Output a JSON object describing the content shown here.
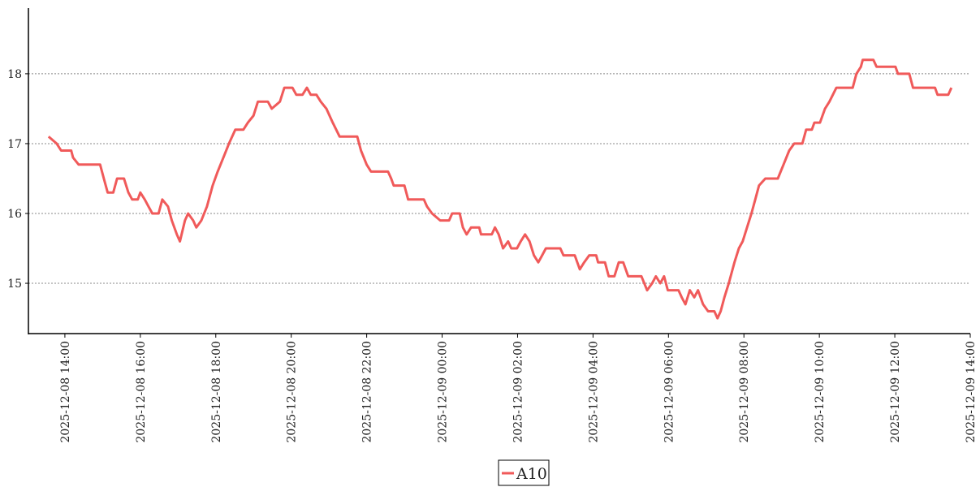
{
  "chart_data": {
    "type": "line",
    "series": [
      {
        "name": "A10",
        "color": "#f05a5a",
        "x": [
          "2025-12-08T13:34",
          "2025-12-08T13:47",
          "2025-12-08T13:54",
          "2025-12-08T14:10",
          "2025-12-08T14:13",
          "2025-12-08T14:22",
          "2025-12-08T14:56",
          "2025-12-08T15:02",
          "2025-12-08T15:08",
          "2025-12-08T15:17",
          "2025-12-08T15:23",
          "2025-12-08T15:34",
          "2025-12-08T15:41",
          "2025-12-08T15:47",
          "2025-12-08T15:56",
          "2025-12-08T16:00",
          "2025-12-08T16:07",
          "2025-12-08T16:13",
          "2025-12-08T16:19",
          "2025-12-08T16:29",
          "2025-12-08T16:35",
          "2025-12-08T16:44",
          "2025-12-08T16:50",
          "2025-12-08T16:58",
          "2025-12-08T17:03",
          "2025-12-08T17:11",
          "2025-12-08T17:16",
          "2025-12-08T17:24",
          "2025-12-08T17:29",
          "2025-12-08T17:37",
          "2025-12-08T17:46",
          "2025-12-08T17:55",
          "2025-12-08T18:03",
          "2025-12-08T18:12",
          "2025-12-08T18:21",
          "2025-12-08T18:31",
          "2025-12-08T18:44",
          "2025-12-08T18:51",
          "2025-12-08T19:00",
          "2025-12-08T19:07",
          "2025-12-08T19:23",
          "2025-12-08T19:29",
          "2025-12-08T19:42",
          "2025-12-08T19:49",
          "2025-12-08T20:02",
          "2025-12-08T20:08",
          "2025-12-08T20:18",
          "2025-12-08T20:25",
          "2025-12-08T20:31",
          "2025-12-08T20:40",
          "2025-12-08T20:47",
          "2025-12-08T20:56",
          "2025-12-08T21:06",
          "2025-12-08T21:17",
          "2025-12-08T21:45",
          "2025-12-08T21:51",
          "2025-12-08T22:00",
          "2025-12-08T22:07",
          "2025-12-08T22:34",
          "2025-12-08T22:39",
          "2025-12-08T22:43",
          "2025-12-08T23:00",
          "2025-12-08T23:06",
          "2025-12-08T23:31",
          "2025-12-08T23:36",
          "2025-12-08T23:44",
          "2025-12-08T23:57",
          "2025-12-09T00:11",
          "2025-12-09T00:16",
          "2025-12-09T00:28",
          "2025-12-09T00:33",
          "2025-12-09T00:39",
          "2025-12-09T00:46",
          "2025-12-09T00:59",
          "2025-12-09T01:02",
          "2025-12-09T01:19",
          "2025-12-09T01:24",
          "2025-12-09T01:30",
          "2025-12-09T01:37",
          "2025-12-09T01:45",
          "2025-12-09T01:50",
          "2025-12-09T01:59",
          "2025-12-09T02:05",
          "2025-12-09T02:12",
          "2025-12-09T02:19",
          "2025-12-09T02:26",
          "2025-12-09T02:33",
          "2025-12-09T02:39",
          "2025-12-09T02:45",
          "2025-12-09T03:08",
          "2025-12-09T03:13",
          "2025-12-09T03:31",
          "2025-12-09T03:39",
          "2025-12-09T03:46",
          "2025-12-09T03:54",
          "2025-12-09T04:05",
          "2025-12-09T04:08",
          "2025-12-09T04:19",
          "2025-12-09T04:25",
          "2025-12-09T04:34",
          "2025-12-09T04:41",
          "2025-12-09T04:48",
          "2025-12-09T04:56",
          "2025-12-09T05:17",
          "2025-12-09T05:26",
          "2025-12-09T05:34",
          "2025-12-09T05:40",
          "2025-12-09T05:47",
          "2025-12-09T05:53",
          "2025-12-09T05:59",
          "2025-12-09T06:16",
          "2025-12-09T06:21",
          "2025-12-09T06:27",
          "2025-12-09T06:34",
          "2025-12-09T06:41",
          "2025-12-09T06:47",
          "2025-12-09T06:55",
          "2025-12-09T07:03",
          "2025-12-09T07:13",
          "2025-12-09T07:18",
          "2025-12-09T07:23",
          "2025-12-09T07:29",
          "2025-12-09T07:36",
          "2025-12-09T07:45",
          "2025-12-09T07:52",
          "2025-12-09T07:58",
          "2025-12-09T08:05",
          "2025-12-09T08:12",
          "2025-12-09T08:18",
          "2025-12-09T08:24",
          "2025-12-09T08:34",
          "2025-12-09T08:54",
          "2025-12-09T09:03",
          "2025-12-09T09:12",
          "2025-12-09T09:20",
          "2025-12-09T09:33",
          "2025-12-09T09:39",
          "2025-12-09T09:48",
          "2025-12-09T09:52",
          "2025-12-09T10:01",
          "2025-12-09T10:09",
          "2025-12-09T10:16",
          "2025-12-09T10:27",
          "2025-12-09T10:53",
          "2025-12-09T10:59",
          "2025-12-09T11:06",
          "2025-12-09T11:09",
          "2025-12-09T11:26",
          "2025-12-09T11:31",
          "2025-12-09T12:01",
          "2025-12-09T12:05",
          "2025-12-09T12:23",
          "2025-12-09T12:29",
          "2025-12-09T13:04",
          "2025-12-09T13:08",
          "2025-12-09T13:25",
          "2025-12-09T13:30"
        ],
        "values": [
          17.1,
          17.0,
          16.9,
          16.9,
          16.8,
          16.7,
          16.7,
          16.5,
          16.3,
          16.3,
          16.5,
          16.5,
          16.3,
          16.2,
          16.2,
          16.3,
          16.2,
          16.1,
          16.0,
          16.0,
          16.2,
          16.1,
          15.9,
          15.7,
          15.6,
          15.9,
          16.0,
          15.9,
          15.8,
          15.9,
          16.1,
          16.4,
          16.6,
          16.8,
          17.0,
          17.2,
          17.2,
          17.3,
          17.4,
          17.6,
          17.6,
          17.5,
          17.6,
          17.8,
          17.8,
          17.7,
          17.7,
          17.8,
          17.7,
          17.7,
          17.6,
          17.5,
          17.3,
          17.1,
          17.1,
          16.9,
          16.7,
          16.6,
          16.6,
          16.5,
          16.4,
          16.4,
          16.2,
          16.2,
          16.1,
          16.0,
          15.9,
          15.9,
          16.0,
          16.0,
          15.8,
          15.7,
          15.8,
          15.8,
          15.7,
          15.7,
          15.8,
          15.7,
          15.5,
          15.6,
          15.5,
          15.5,
          15.6,
          15.7,
          15.6,
          15.4,
          15.3,
          15.4,
          15.5,
          15.5,
          15.4,
          15.4,
          15.2,
          15.3,
          15.4,
          15.4,
          15.3,
          15.3,
          15.1,
          15.1,
          15.3,
          15.3,
          15.1,
          15.1,
          14.9,
          15.0,
          15.1,
          15.0,
          15.1,
          14.9,
          14.9,
          14.8,
          14.7,
          14.9,
          14.8,
          14.9,
          14.7,
          14.6,
          14.6,
          14.5,
          14.6,
          14.8,
          15.0,
          15.3,
          15.5,
          15.6,
          15.8,
          16.0,
          16.2,
          16.4,
          16.5,
          16.5,
          16.7,
          16.9,
          17.0,
          17.0,
          17.2,
          17.2,
          17.3,
          17.3,
          17.5,
          17.6,
          17.8,
          17.8,
          18.0,
          18.1,
          18.2,
          18.2,
          18.1,
          18.1,
          18.0,
          18.0,
          17.8,
          17.8,
          17.7,
          17.7,
          17.8
        ]
      }
    ],
    "xlim": [
      "2025-12-08T13:02",
      "2025-12-09T14:00"
    ],
    "xticks": [
      {
        "value": "2025-12-08T14:00",
        "label": "2025-12-08 14:00"
      },
      {
        "value": "2025-12-08T16:00",
        "label": "2025-12-08 16:00"
      },
      {
        "value": "2025-12-08T18:00",
        "label": "2025-12-08 18:00"
      },
      {
        "value": "2025-12-08T20:00",
        "label": "2025-12-08 20:00"
      },
      {
        "value": "2025-12-08T22:00",
        "label": "2025-12-08 22:00"
      },
      {
        "value": "2025-12-09T00:00",
        "label": "2025-12-09 00:00"
      },
      {
        "value": "2025-12-09T02:00",
        "label": "2025-12-09 02:00"
      },
      {
        "value": "2025-12-09T04:00",
        "label": "2025-12-09 04:00"
      },
      {
        "value": "2025-12-09T06:00",
        "label": "2025-12-09 06:00"
      },
      {
        "value": "2025-12-09T08:00",
        "label": "2025-12-09 08:00"
      },
      {
        "value": "2025-12-09T10:00",
        "label": "2025-12-09 10:00"
      },
      {
        "value": "2025-12-09T12:00",
        "label": "2025-12-09 12:00"
      },
      {
        "value": "2025-12-09T14:00",
        "label": "2025-12-09 14:00"
      }
    ],
    "ylim": [
      14.28,
      18.94
    ],
    "yticks": [
      15,
      16,
      17,
      18
    ],
    "grid": true,
    "legend": "lower center"
  }
}
